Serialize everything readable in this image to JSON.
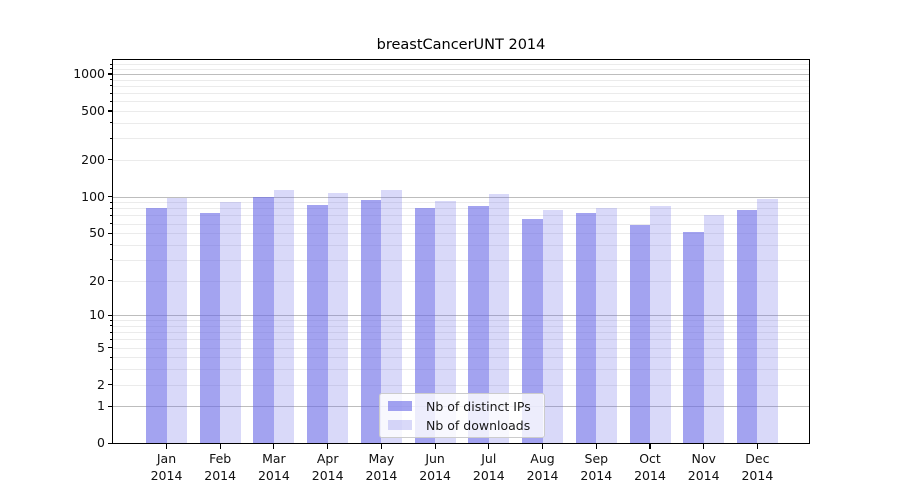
{
  "title": "breastCancerUNT 2014",
  "legend": {
    "items": [
      {
        "label": "Nb of distinct IPs",
        "color": "#6666e6",
        "alpha": 0.6
      },
      {
        "label": "Nb of downloads",
        "color": "#6666e6",
        "alpha": 0.25
      }
    ]
  },
  "chart_data": {
    "type": "bar",
    "title": "breastCancerUNT 2014",
    "categories": [
      "Jan 2014",
      "Feb 2014",
      "Mar 2014",
      "Apr 2014",
      "May 2014",
      "Jun 2014",
      "Jul 2014",
      "Aug 2014",
      "Sep 2014",
      "Oct 2014",
      "Nov 2014",
      "Dec 2014"
    ],
    "x_tick_months": [
      "Jan",
      "Feb",
      "Mar",
      "Apr",
      "May",
      "Jun",
      "Jul",
      "Aug",
      "Sep",
      "Oct",
      "Nov",
      "Dec"
    ],
    "x_tick_year": "2014",
    "series": [
      {
        "name": "Nb of distinct IPs",
        "color": "#6666e6",
        "alpha": 0.6,
        "values": [
          80,
          73,
          100,
          85,
          93,
          80,
          84,
          66,
          74,
          58,
          51,
          77
        ]
      },
      {
        "name": "Nb of downloads",
        "color": "#6666e6",
        "alpha": 0.25,
        "values": [
          97,
          90,
          114,
          107,
          114,
          92,
          106,
          78,
          81,
          84,
          70,
          95
        ]
      }
    ],
    "xlabel": "",
    "ylabel": "",
    "yscale": "log1p",
    "ylim": [
      0,
      1270
    ],
    "y_ticks": [
      0,
      1,
      2,
      5,
      10,
      20,
      50,
      100,
      200,
      500,
      1000
    ],
    "y_major_gridlines": [
      1,
      10,
      100,
      1000
    ],
    "y_minor_gridlines": [
      2,
      3,
      4,
      5,
      6,
      7,
      8,
      9,
      20,
      30,
      40,
      50,
      60,
      70,
      80,
      90,
      200,
      300,
      400,
      500,
      600,
      700,
      800,
      900,
      1100,
      1200
    ],
    "grid": true,
    "legend_position": "lower center"
  }
}
